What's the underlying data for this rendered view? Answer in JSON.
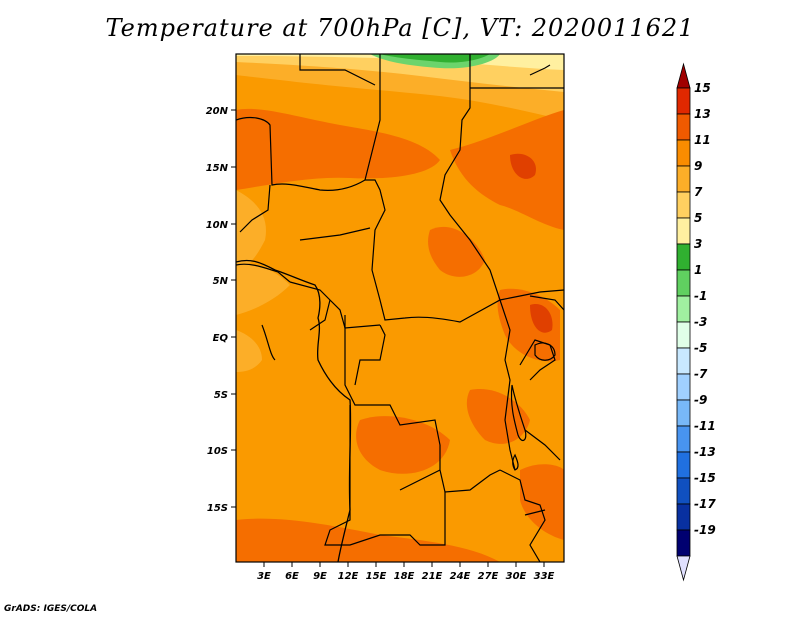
{
  "title": "Temperature at 700hPa [C], VT: 2020011621",
  "credit": "GrADS: IGES/COLA",
  "lat_labels": [
    "20N",
    "15N",
    "10N",
    "5N",
    "EQ",
    "5S",
    "10S",
    "15S"
  ],
  "lon_labels": [
    "3E",
    "6E",
    "9E",
    "12E",
    "15E",
    "18E",
    "21E",
    "24E",
    "27E",
    "30E",
    "33E"
  ],
  "colorbar": {
    "labels": [
      "15",
      "13",
      "11",
      "9",
      "7",
      "5",
      "3",
      "1",
      "-1",
      "-3",
      "-5",
      "-7",
      "-9",
      "-11",
      "-13",
      "-15",
      "-17",
      "-19"
    ],
    "colors": [
      "#a00000",
      "#e02800",
      "#f05a00",
      "#fa8c00",
      "#fcae28",
      "#ffd060",
      "#fff0a0",
      "#30b030",
      "#60d060",
      "#a0f0a0",
      "#e0ffe8",
      "#c8e8ff",
      "#a0d0ff",
      "#78b8f8",
      "#4894f0",
      "#2070e0",
      "#1050c0",
      "#0830a0",
      "#000070",
      "#e0e0ff"
    ]
  },
  "map": {
    "region": "Central Africa",
    "lat_range": [
      "18S",
      "24N"
    ],
    "lon_range": [
      "0E",
      "35E"
    ]
  }
}
